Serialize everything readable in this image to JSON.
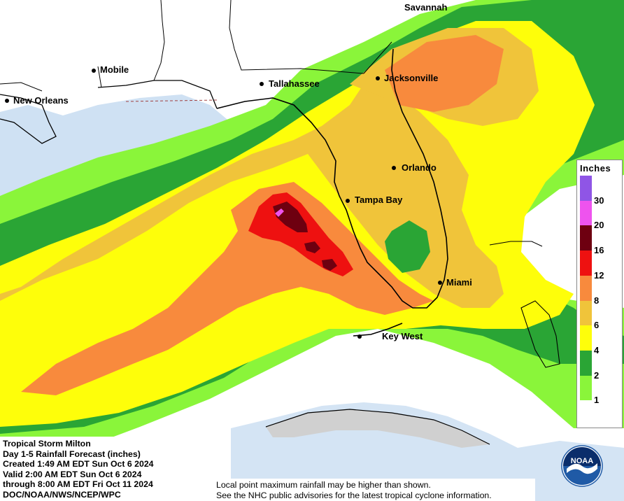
{
  "legend": {
    "title": "Inches",
    "ticks": [
      "30",
      "20",
      "16",
      "12",
      "8",
      "6",
      "4",
      "2",
      "1"
    ],
    "colors": [
      "#8f55e6",
      "#ee53ee",
      "#6e0010",
      "#ee1110",
      "#f88a3d",
      "#f0c43a",
      "#fefe0a",
      "#2aa535",
      "#8af53a",
      "#ffffff"
    ]
  },
  "cities": [
    {
      "name": "Savannah",
      "dot": false
    },
    {
      "name": "Mobile",
      "dot": true
    },
    {
      "name": "Jacksonville",
      "dot": true
    },
    {
      "name": "Tallahassee",
      "dot": true
    },
    {
      "name": "New Orleans",
      "dot": true
    },
    {
      "name": "Orlando",
      "dot": true
    },
    {
      "name": "Tampa Bay",
      "dot": true
    },
    {
      "name": "Miami",
      "dot": true
    },
    {
      "name": "Key West",
      "dot": true
    }
  ],
  "info": {
    "line1": "Tropical Storm Milton",
    "line2": "Day 1-5 Rainfall Forecast (inches)",
    "line3": "Created 1:49 AM EDT Sun Oct 6 2024",
    "line4": "Valid 2:00 AM EDT Sun Oct 6 2024",
    "line5": "through 8:00 AM EDT Fri Oct 11 2024",
    "line6": "DOC/NOAA/NWS/NCEP/WPC"
  },
  "note": {
    "line1": "Local point maximum rainfall may be higher than shown.",
    "line2": "See the NHC public advisories for the latest tropical cyclone information."
  },
  "logo": {
    "text": "NOAA",
    "color_primary": "#1f5aa6",
    "color_dark": "#0a2d6b"
  }
}
